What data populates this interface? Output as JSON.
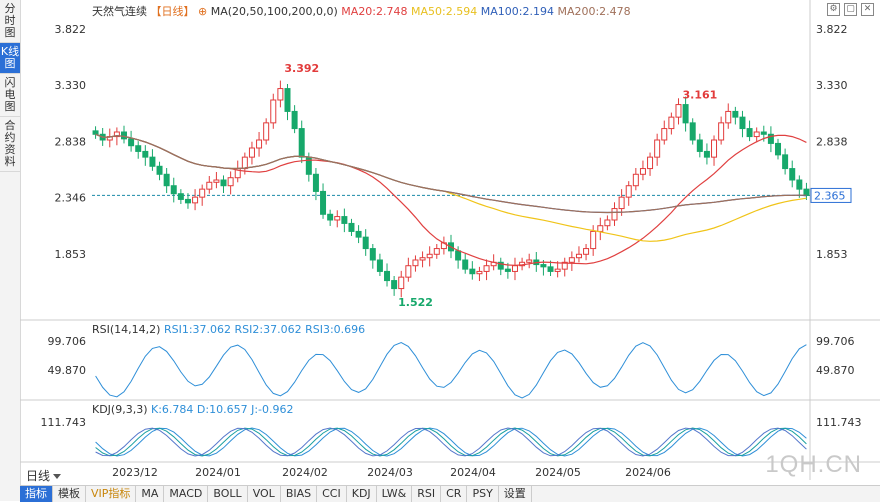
{
  "side_tabs": [
    "分时图",
    "K线图",
    "闪电图",
    "合约资料"
  ],
  "main": {
    "title": "天然气连续",
    "period_tag": "【日线】",
    "ma_params": "MA(20,50,100,200,0,0)",
    "ma20": "MA20:2.748",
    "ma50": "MA50:2.594",
    "ma100": "MA100:2.194",
    "ma200": "MA200:2.478",
    "price_ticks": [
      "3.822",
      "3.330",
      "2.838",
      "2.346",
      "1.853"
    ],
    "right_ticks": [
      "3.822",
      "3.330",
      "2.838",
      "2.346",
      "1.853"
    ],
    "current_price": "2.365",
    "high_label": "3.392",
    "high2_label": "3.161",
    "low_label": "1.522",
    "colors": {
      "up": "#e23b3b",
      "down": "#17a86b",
      "ma20": "#e04040",
      "ma50": "#f0c419",
      "ma100": "#2f5fb8",
      "ma200": "#a0705a"
    }
  },
  "rsi": {
    "title": "RSI(14,14,2)",
    "rsi1": "RSI1:37.062",
    "rsi2": "RSI2:37.062",
    "rsi3": "RSI3:0.696",
    "ticks": [
      "99.706",
      "49.870"
    ],
    "right_ticks": [
      "99.706",
      "49.870"
    ]
  },
  "kdj": {
    "title": "KDJ(9,3,3)",
    "k": "K:6.784",
    "d": "D:10.657",
    "j": "J:-0.962",
    "ticks": [
      "111.743"
    ],
    "right_ticks": [
      "111.743"
    ]
  },
  "x_axis": [
    "2023/12",
    "2024/01",
    "2024/02",
    "2024/03",
    "2024/04",
    "2024/05",
    "2024/06"
  ],
  "period_button": "日线",
  "bottom_tabs": [
    "指标",
    "模板",
    "VIP指标",
    "MA",
    "MACD",
    "BOLL",
    "VOL",
    "BIAS",
    "CCI",
    "KDJ",
    "LW&",
    "RSI",
    "CR",
    "PSY",
    "设置"
  ],
  "watermark": "1QH.CN",
  "chart_data": {
    "type": "candlestick",
    "ylim": [
      1.45,
      3.9
    ],
    "series_close": [
      2.9,
      2.85,
      2.88,
      2.92,
      2.86,
      2.8,
      2.75,
      2.7,
      2.62,
      2.55,
      2.45,
      2.38,
      2.33,
      2.3,
      2.35,
      2.42,
      2.48,
      2.5,
      2.45,
      2.52,
      2.6,
      2.7,
      2.78,
      2.85,
      3.0,
      3.2,
      3.3,
      3.1,
      2.95,
      2.7,
      2.55,
      2.4,
      2.2,
      2.15,
      2.18,
      2.12,
      2.05,
      2.0,
      1.9,
      1.8,
      1.7,
      1.62,
      1.55,
      1.65,
      1.75,
      1.8,
      1.82,
      1.85,
      1.9,
      1.95,
      1.88,
      1.8,
      1.72,
      1.68,
      1.7,
      1.75,
      1.78,
      1.72,
      1.7,
      1.75,
      1.78,
      1.8,
      1.76,
      1.74,
      1.7,
      1.72,
      1.78,
      1.82,
      1.85,
      1.9,
      2.05,
      2.1,
      2.15,
      2.25,
      2.35,
      2.45,
      2.55,
      2.6,
      2.7,
      2.85,
      2.95,
      3.05,
      3.16,
      3.0,
      2.85,
      2.75,
      2.7,
      2.85,
      3.0,
      3.1,
      3.05,
      2.95,
      2.88,
      2.92,
      2.9,
      2.82,
      2.72,
      2.6,
      2.5,
      2.42,
      2.365
    ]
  }
}
